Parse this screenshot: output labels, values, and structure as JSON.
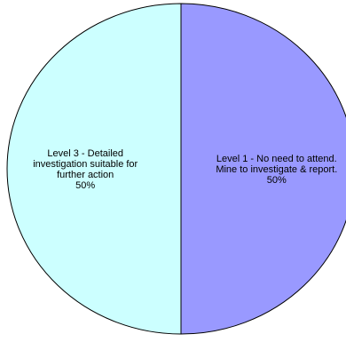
{
  "chart_data": {
    "type": "pie",
    "title": "",
    "slices": [
      {
        "label_lines": [
          "Level 1 - No need to attend.",
          "Mine to investigate & report."
        ],
        "percent_label": "50%",
        "value": 50,
        "color": "#9999FF"
      },
      {
        "label_lines": [
          "Level 3 - Detailed",
          "investigation suitable for",
          "further action"
        ],
        "percent_label": "50%",
        "value": 50,
        "color": "#CCFFFF"
      }
    ],
    "legend": "none"
  }
}
